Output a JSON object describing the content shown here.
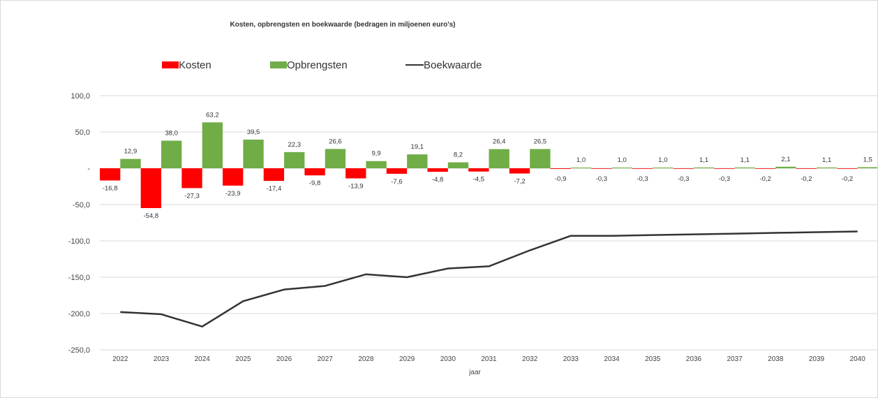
{
  "chart_data": {
    "type": "bar",
    "title": "Kosten, opbrengsten en boekwaarde (bedragen in miljoenen euro's)",
    "xlabel": "jaar",
    "ylabel": "",
    "ylim": [
      -250,
      100
    ],
    "yticks": [
      100,
      50,
      0,
      -50,
      -100,
      -150,
      -200,
      -250
    ],
    "ytick_labels": [
      "100,0",
      "50,0",
      "-",
      "-50,0",
      "-100,0",
      "-150,0",
      "-200,0",
      "-250,0"
    ],
    "grid": true,
    "legend_position": "top",
    "categories": [
      "2022",
      "2023",
      "2024",
      "2025",
      "2026",
      "2027",
      "2028",
      "2029",
      "2030",
      "2031",
      "2032",
      "2033",
      "2034",
      "2035",
      "2036",
      "2037",
      "2038",
      "2039",
      "2040"
    ],
    "series": [
      {
        "name": "Kosten",
        "type": "bar",
        "color": "#ff0000",
        "values": [
          -16.8,
          -54.8,
          -27.3,
          -23.9,
          -17.4,
          -9.8,
          -13.9,
          -7.6,
          -4.8,
          -4.5,
          -7.2,
          -0.9,
          -0.3,
          -0.3,
          -0.3,
          -0.3,
          -0.2,
          -0.2,
          -0.2
        ],
        "labels": [
          "-16,8",
          "-54,8",
          "-27,3",
          "-23,9",
          "-17,4",
          "-9,8",
          "-13,9",
          "-7,6",
          "-4,8",
          "-4,5",
          "-7,2",
          "-0,9",
          "-0,3",
          "-0,3",
          "-0,3",
          "-0,3",
          "-0,2",
          "-0,2",
          "-0,2"
        ]
      },
      {
        "name": "Opbrengsten",
        "type": "bar",
        "color": "#70ad47",
        "values": [
          12.9,
          38.0,
          63.2,
          39.5,
          22.3,
          26.6,
          9.9,
          19.1,
          8.2,
          26.4,
          26.5,
          1.0,
          1.0,
          1.0,
          1.1,
          1.1,
          2.1,
          1.1,
          1.5
        ],
        "labels": [
          "12,9",
          "38,0",
          "63,2",
          "39,5",
          "22,3",
          "26,6",
          "9,9",
          "19,1",
          "8,2",
          "26,4",
          "26,5",
          "1,0",
          "1,0",
          "1,0",
          "1,1",
          "1,1",
          "2,1",
          "1,1",
          "1,5"
        ]
      },
      {
        "name": "Boekwaarde",
        "type": "line",
        "color": "#333333",
        "values": [
          -198,
          -201,
          -218,
          -183,
          -167,
          -162,
          -146,
          -150,
          -138,
          -135,
          -113,
          -93,
          -93,
          -92,
          -91,
          -90,
          -89,
          -88,
          -87
        ]
      }
    ]
  }
}
